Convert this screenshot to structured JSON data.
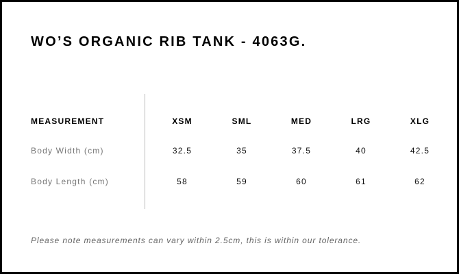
{
  "title": "WO’S ORGANIC RIB TANK - 4063G.",
  "table": {
    "header": {
      "label": "MEASUREMENT",
      "sizes": [
        "XSM",
        "SML",
        "MED",
        "LRG",
        "XLG"
      ]
    },
    "rows": [
      {
        "label": "Body Width (cm)",
        "values": [
          "32.5",
          "35",
          "37.5",
          "40",
          "42.5"
        ]
      },
      {
        "label": "Body Length (cm)",
        "values": [
          "58",
          "59",
          "60",
          "61",
          "62"
        ]
      }
    ]
  },
  "note": "Please note measurements can vary within 2.5cm, this is within our tolerance."
}
